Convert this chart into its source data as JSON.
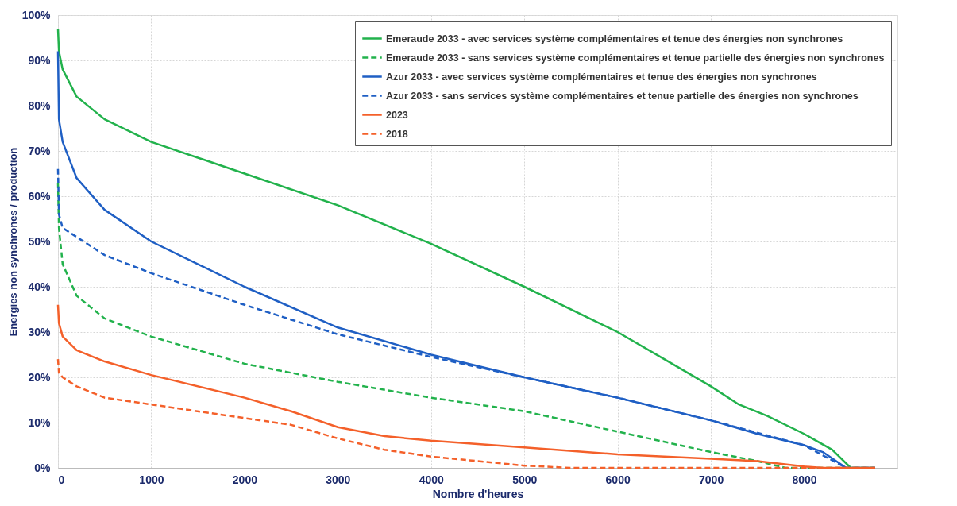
{
  "chart_data": {
    "type": "line",
    "xlabel": "Nombre d'heures",
    "ylabel": "Energies non synchrones / production",
    "xlim": [
      0,
      9000
    ],
    "xticks": [
      0,
      1000,
      2000,
      3000,
      4000,
      5000,
      6000,
      7000,
      8000
    ],
    "ylim": [
      0,
      100
    ],
    "yticks": [
      {
        "value": 0,
        "label": "0%"
      },
      {
        "value": 10,
        "label": "10%"
      },
      {
        "value": 20,
        "label": "20%"
      },
      {
        "value": 30,
        "label": "30%"
      },
      {
        "value": 40,
        "label": "40%"
      },
      {
        "value": 50,
        "label": "50%"
      },
      {
        "value": 60,
        "label": "60%"
      },
      {
        "value": 70,
        "label": "70%"
      },
      {
        "value": 80,
        "label": "80%"
      },
      {
        "value": 90,
        "label": "90%"
      },
      {
        "value": 100,
        "label": "100%"
      }
    ],
    "grid": true,
    "legend": "top right",
    "marker": "none",
    "series": [
      {
        "name": "Emeraude 2033 - avec services système complémentaires et tenue des énergies non synchrones",
        "color": "#22b24c",
        "line_style": "solid",
        "x": [
          0,
          10,
          50,
          200,
          500,
          1000,
          2000,
          3000,
          4000,
          5000,
          6000,
          6500,
          7000,
          7300,
          7600,
          8000,
          8300,
          8500,
          8760
        ],
        "values": [
          97,
          92,
          88,
          82,
          77,
          72,
          65,
          58,
          49.5,
          40,
          30,
          24,
          18,
          14,
          11.5,
          7.5,
          4,
          0,
          0
        ]
      },
      {
        "name": "Emeraude 2033 - sans services système complémentaires et tenue partielle des énergies non synchrones",
        "color": "#22b24c",
        "line_style": "dashed",
        "x": [
          0,
          10,
          50,
          200,
          500,
          1000,
          2000,
          3000,
          4000,
          5000,
          6000,
          7000,
          7500,
          7800,
          8760
        ],
        "values": [
          63,
          53,
          45,
          38,
          33,
          29,
          23,
          19,
          15.5,
          12.5,
          8,
          3.5,
          1.5,
          0,
          0
        ]
      },
      {
        "name": "Azur 2033 - avec services système complémentaires et tenue des énergies non synchrones",
        "color": "#1f5fc4",
        "line_style": "solid",
        "x": [
          0,
          10,
          50,
          200,
          500,
          1000,
          2000,
          3000,
          4000,
          5000,
          6000,
          7000,
          7500,
          8000,
          8200,
          8450,
          8760
        ],
        "values": [
          92,
          77,
          72,
          64,
          57,
          50,
          40,
          31,
          25,
          20,
          15.5,
          10.5,
          7.5,
          5,
          3.5,
          0,
          0
        ]
      },
      {
        "name": "Azur 2033 - sans services système complémentaires et tenue partielle des énergies non synchrones",
        "color": "#1f5fc4",
        "line_style": "dashed",
        "x": [
          0,
          10,
          50,
          200,
          500,
          1000,
          2000,
          3000,
          4000,
          5000,
          6000,
          7000,
          8000,
          8450,
          8760
        ],
        "values": [
          66,
          56,
          53,
          51,
          47,
          43,
          36,
          29.5,
          24.5,
          20,
          15.5,
          10.5,
          5,
          0,
          0
        ]
      },
      {
        "name": "2023",
        "color": "#f4602a",
        "line_style": "solid",
        "x": [
          0,
          10,
          50,
          200,
          500,
          1000,
          2000,
          2500,
          3000,
          3500,
          4000,
          5000,
          6000,
          7000,
          7500,
          8000,
          8200,
          8760
        ],
        "values": [
          36,
          32,
          29,
          26,
          23.5,
          20.5,
          15.5,
          12.5,
          9,
          7,
          6,
          4.5,
          3,
          2,
          1.5,
          0.3,
          0,
          0
        ]
      },
      {
        "name": "2018",
        "color": "#f4602a",
        "line_style": "dashed",
        "x": [
          0,
          10,
          50,
          200,
          500,
          1000,
          2000,
          2500,
          3000,
          3500,
          4000,
          4500,
          5000,
          5500,
          8760
        ],
        "values": [
          24,
          21,
          20,
          18,
          15.5,
          14,
          11,
          9.5,
          6.5,
          4,
          2.5,
          1.5,
          0.5,
          0,
          0
        ]
      }
    ]
  }
}
